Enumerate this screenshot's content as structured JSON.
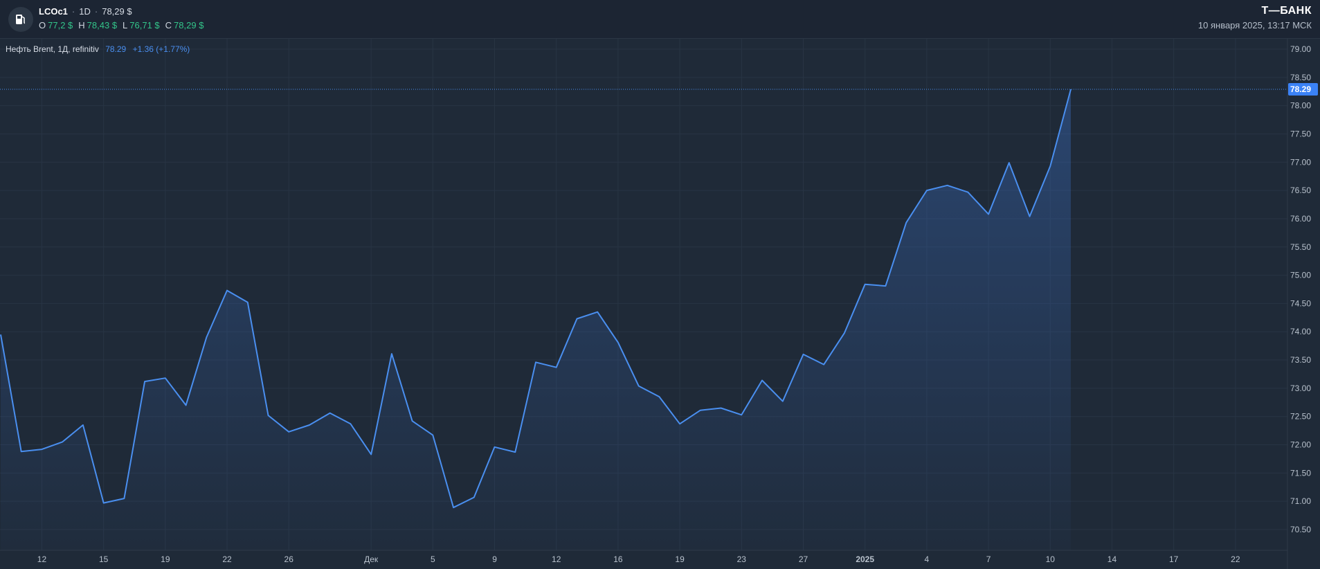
{
  "header": {
    "ticker": "LCOc1",
    "interval": "1D",
    "last_price": "78,29 $",
    "ohlc": [
      {
        "label": "O",
        "value": "77,2 $"
      },
      {
        "label": "H",
        "value": "78,43 $"
      },
      {
        "label": "L",
        "value": "76,71 $"
      },
      {
        "label": "C",
        "value": "78,29 $"
      }
    ],
    "brand": "Т—БАНК",
    "datetime": "10 января 2025, 13:17 МСК",
    "logo_icon": "fuel-pump-icon"
  },
  "legend": {
    "name": "Нефть Brent, 1Д, refinitiv",
    "price": "78.29",
    "change": "+1.36 (+1.77%)"
  },
  "colors": {
    "background": "#1f2a38",
    "line": "#4a8ff0",
    "positive": "#33c58a",
    "price_tag": "#3b82f6"
  },
  "chart_data": {
    "type": "area",
    "grid": true,
    "ylim": [
      70.0,
      79.2
    ],
    "y_ticks": [
      "79.00",
      "78.50",
      "78.00",
      "77.50",
      "77.00",
      "76.50",
      "76.00",
      "75.50",
      "75.00",
      "74.50",
      "74.00",
      "73.50",
      "73.00",
      "72.50",
      "72.00",
      "71.50",
      "71.00",
      "70.50"
    ],
    "last_price_label": "78.29",
    "x_ticks": [
      {
        "label": "12",
        "day": 2
      },
      {
        "label": "15",
        "day": 5
      },
      {
        "label": "19",
        "day": 8
      },
      {
        "label": "22",
        "day": 11
      },
      {
        "label": "26",
        "day": 14
      },
      {
        "label": "Дек",
        "day": 18
      },
      {
        "label": "5",
        "day": 21
      },
      {
        "label": "9",
        "day": 24
      },
      {
        "label": "12",
        "day": 27
      },
      {
        "label": "16",
        "day": 30
      },
      {
        "label": "19",
        "day": 33
      },
      {
        "label": "23",
        "day": 36
      },
      {
        "label": "27",
        "day": 39
      },
      {
        "label": "2025",
        "day": 42,
        "bold": true
      },
      {
        "label": "4",
        "day": 45
      },
      {
        "label": "7",
        "day": 48
      },
      {
        "label": "10",
        "day": 51
      },
      {
        "label": "14",
        "day": 54
      },
      {
        "label": "17",
        "day": 57
      },
      {
        "label": "22",
        "day": 60
      }
    ],
    "x_range": [
      0,
      62.5
    ],
    "series": [
      {
        "values": [
          [
            0,
            73.95
          ],
          [
            1,
            71.88
          ],
          [
            2,
            71.92
          ],
          [
            3,
            72.05
          ],
          [
            4,
            72.35
          ],
          [
            5,
            70.97
          ],
          [
            6,
            71.05
          ],
          [
            7,
            73.12
          ],
          [
            8,
            73.18
          ],
          [
            9,
            72.7
          ],
          [
            10,
            73.9
          ],
          [
            11,
            74.73
          ],
          [
            12,
            74.52
          ],
          [
            13,
            72.52
          ],
          [
            14,
            72.23
          ],
          [
            15,
            72.35
          ],
          [
            16,
            72.56
          ],
          [
            17,
            72.37
          ],
          [
            18,
            71.83
          ],
          [
            19,
            73.61
          ],
          [
            20,
            72.42
          ],
          [
            21,
            72.17
          ],
          [
            22,
            70.89
          ],
          [
            23,
            71.07
          ],
          [
            24,
            71.96
          ],
          [
            25,
            71.87
          ],
          [
            26,
            73.46
          ],
          [
            27,
            73.37
          ],
          [
            28,
            74.23
          ],
          [
            29,
            74.35
          ],
          [
            30,
            73.81
          ],
          [
            31,
            73.04
          ],
          [
            32,
            72.85
          ],
          [
            33,
            72.37
          ],
          [
            34,
            72.61
          ],
          [
            35,
            72.65
          ],
          [
            36,
            72.53
          ],
          [
            37,
            73.14
          ],
          [
            38,
            72.77
          ],
          [
            39,
            73.6
          ],
          [
            40,
            73.42
          ],
          [
            41,
            73.98
          ],
          [
            42,
            74.84
          ],
          [
            43,
            74.81
          ],
          [
            44,
            75.93
          ],
          [
            45,
            76.5
          ],
          [
            46,
            76.59
          ],
          [
            47,
            76.47
          ],
          [
            48,
            76.08
          ],
          [
            49,
            76.99
          ],
          [
            50,
            76.04
          ],
          [
            51,
            76.93
          ],
          [
            52,
            78.29
          ]
        ]
      }
    ]
  }
}
